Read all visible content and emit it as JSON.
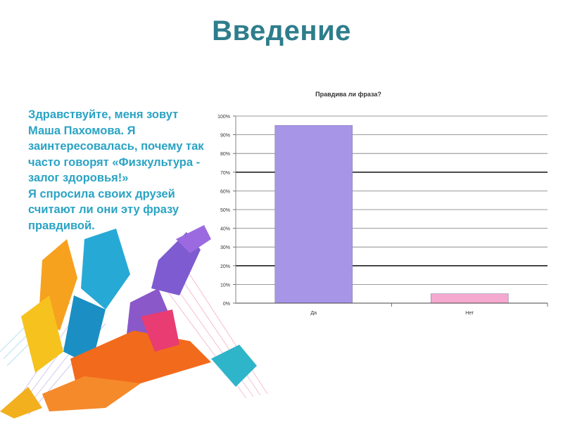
{
  "slide": {
    "title": "Введение",
    "intro_lines": [
      "Здравствуйте, меня зовут Маша Пахомова. Я заинтересовалась, почему так часто говорят «Физкультура - залог здоровья!»",
      "Я спросила своих друзей считают ли они эту фразу правдивой."
    ]
  },
  "chart_data": {
    "type": "bar",
    "title": "Правдива ли фраза?",
    "categories": [
      "Да",
      "Нет"
    ],
    "values": [
      95,
      5
    ],
    "unit": "%",
    "ylim": [
      0,
      100
    ],
    "yticks": [
      0,
      10,
      20,
      30,
      40,
      50,
      60,
      70,
      80,
      90,
      100
    ],
    "bar_colors": [
      "#a795e8",
      "#f6a9cf"
    ],
    "grid": true,
    "legend": "none"
  },
  "illustration": {
    "icon": "sports-figures-illustration",
    "colors": [
      "#f6a21e",
      "#27a9d6",
      "#f26a1b",
      "#7e5bd0",
      "#e83c73"
    ]
  }
}
